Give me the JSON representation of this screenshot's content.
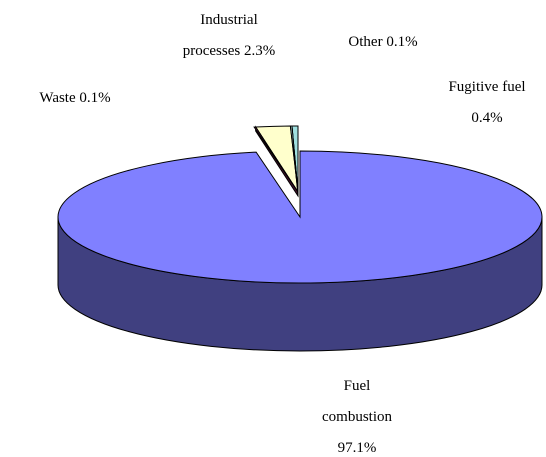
{
  "chart_data": {
    "type": "pie",
    "categories": [
      "Waste",
      "Industrial processes",
      "Other",
      "Fugitive fuel",
      "Fuel combustion"
    ],
    "values": [
      0.1,
      2.3,
      0.1,
      0.4,
      97.1
    ],
    "value_labels": [
      "0.1%",
      "2.3%",
      "0.1%",
      "0.4%",
      "97.1%"
    ],
    "colors": [
      "#802050",
      "#ffffcc",
      "#ccffff",
      "#a0e0e0",
      "#8080ff"
    ]
  }
}
